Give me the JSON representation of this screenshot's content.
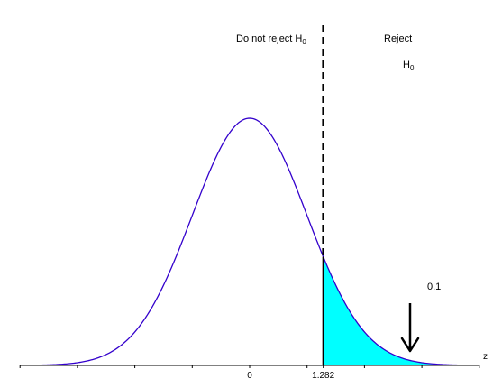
{
  "labels": {
    "do_not_reject_main": "Do not reject H",
    "do_not_reject_sub": "0",
    "reject_word": "Reject",
    "reject_h_main": "H",
    "reject_h_sub": "0",
    "alpha": "0.1",
    "axis_name": "z"
  },
  "ticks": [
    {
      "value": 0,
      "label": "0"
    },
    {
      "value": 1.282,
      "label": "1.282"
    }
  ],
  "chart_data": {
    "type": "area",
    "distribution": "standard normal",
    "critical_value": 1.282,
    "tail_area": 0.1,
    "tail_side": "right",
    "xlim": [
      -4,
      4
    ],
    "colors": {
      "curve": "#3300cc",
      "rejection_fill": "#00ffff",
      "critical_line": "#000000"
    }
  }
}
